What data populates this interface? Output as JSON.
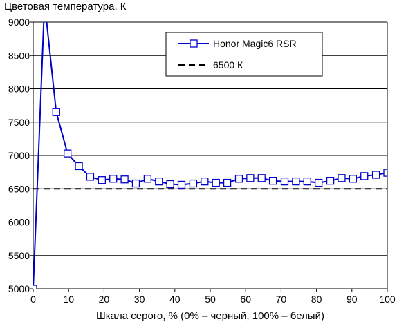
{
  "chart_data": {
    "type": "line",
    "title": "Цветовая температура, К",
    "xlabel": "Шкала серого, % (0% – черный, 100% – белый)",
    "ylabel": "",
    "xlim": [
      0,
      100
    ],
    "ylim": [
      5000,
      9000
    ],
    "x_ticks": [
      "0",
      "10",
      "20",
      "30",
      "40",
      "50",
      "60",
      "70",
      "80",
      "90",
      "100"
    ],
    "y_ticks": [
      "5000",
      "5500",
      "6000",
      "6500",
      "7000",
      "7500",
      "8000",
      "8500",
      "9000"
    ],
    "grid": "horizontal",
    "legend_position": "top-right",
    "series": [
      {
        "name": "Honor Magic6 RSR",
        "color": "#0000cc",
        "marker": "open-square",
        "x": [
          0,
          3.2,
          6.5,
          9.7,
          12.9,
          16.1,
          19.4,
          22.6,
          25.8,
          29.0,
          32.3,
          35.5,
          38.7,
          41.9,
          45.2,
          48.4,
          51.6,
          54.8,
          58.1,
          61.3,
          64.5,
          67.7,
          71.0,
          74.2,
          77.4,
          80.6,
          83.9,
          87.1,
          90.3,
          93.5,
          96.8,
          100
        ],
        "y": [
          5000,
          9300,
          7650,
          7030,
          6840,
          6680,
          6630,
          6650,
          6640,
          6580,
          6650,
          6610,
          6570,
          6560,
          6580,
          6610,
          6590,
          6590,
          6650,
          6660,
          6660,
          6620,
          6610,
          6610,
          6610,
          6590,
          6620,
          6660,
          6650,
          6690,
          6710,
          6740
        ]
      },
      {
        "name": "6500 К",
        "color": "#000000",
        "style": "dashed",
        "x": [
          0,
          100
        ],
        "y": [
          6500,
          6500
        ]
      }
    ]
  }
}
